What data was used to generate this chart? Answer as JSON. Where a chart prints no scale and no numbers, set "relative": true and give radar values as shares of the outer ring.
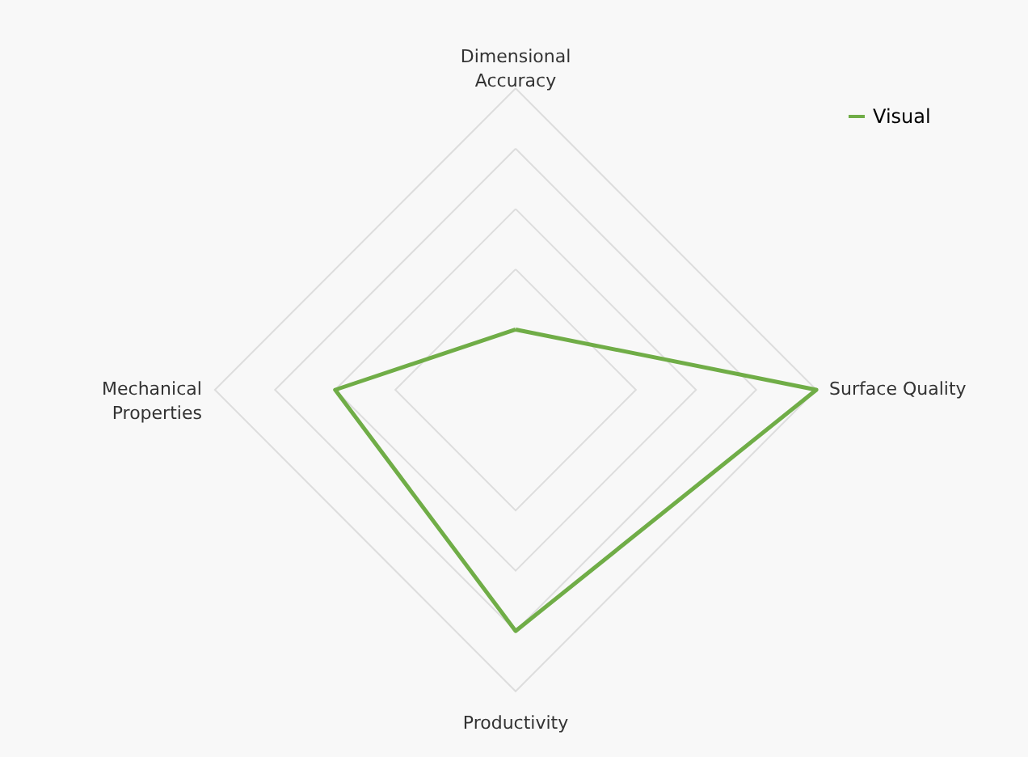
{
  "chart_data": {
    "type": "radar",
    "relative": true,
    "grid": true,
    "legend": "top right",
    "marker": "none",
    "line_style": "solid",
    "categories": [
      "Dimensional Accuracy",
      "Surface Quality",
      "Productivity",
      "Mechanical Properties"
    ],
    "series": [
      {
        "name": "Visual",
        "color": "#70ad47",
        "values": [
          0.2,
          1,
          0.8,
          0.6
        ]
      }
    ]
  }
}
